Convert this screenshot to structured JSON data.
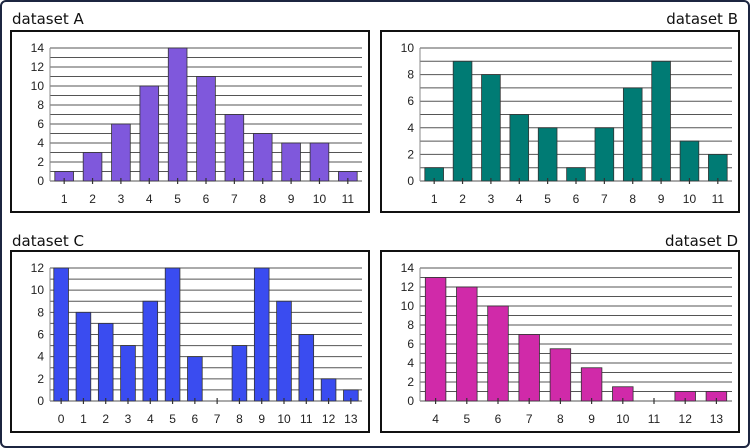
{
  "chart_data": [
    {
      "type": "bar",
      "title": "dataset A",
      "categories": [
        "1",
        "2",
        "3",
        "4",
        "5",
        "6",
        "7",
        "8",
        "9",
        "10",
        "11"
      ],
      "values": [
        1,
        3,
        6,
        10,
        14,
        11,
        7,
        5,
        4,
        4,
        1
      ],
      "ylim": [
        0,
        14
      ],
      "yticks": [
        0,
        2,
        4,
        6,
        8,
        10,
        12,
        14
      ],
      "grid": true,
      "color": "#7f58dc"
    },
    {
      "type": "bar",
      "title": "dataset B",
      "categories": [
        "1",
        "2",
        "3",
        "4",
        "5",
        "6",
        "7",
        "8",
        "9",
        "10",
        "11"
      ],
      "values": [
        1,
        9,
        8,
        5,
        4,
        1,
        4,
        7,
        9,
        3,
        2
      ],
      "ylim": [
        0,
        10
      ],
      "yticks": [
        0,
        2,
        4,
        6,
        8,
        10
      ],
      "grid": true,
      "color": "#007b74"
    },
    {
      "type": "bar",
      "title": "dataset C",
      "categories": [
        "0",
        "1",
        "2",
        "3",
        "4",
        "5",
        "6",
        "7",
        "8",
        "9",
        "10",
        "11",
        "12",
        "13"
      ],
      "values": [
        12,
        8,
        7,
        5,
        9,
        12,
        4,
        0,
        5,
        12,
        9,
        6,
        2,
        1
      ],
      "ylim": [
        0,
        12
      ],
      "yticks": [
        0,
        2,
        4,
        6,
        8,
        10,
        12
      ],
      "grid": true,
      "color": "#3a4cf0"
    },
    {
      "type": "bar",
      "title": "dataset D",
      "categories": [
        "4",
        "5",
        "6",
        "7",
        "8",
        "9",
        "10",
        "11",
        "12",
        "13"
      ],
      "values": [
        13,
        12,
        10,
        7,
        5.5,
        3.5,
        1.5,
        0,
        1,
        1
      ],
      "ylim": [
        0,
        14
      ],
      "yticks": [
        0,
        2,
        4,
        6,
        8,
        10,
        12,
        14
      ],
      "grid": true,
      "color": "#d02aa9"
    }
  ]
}
